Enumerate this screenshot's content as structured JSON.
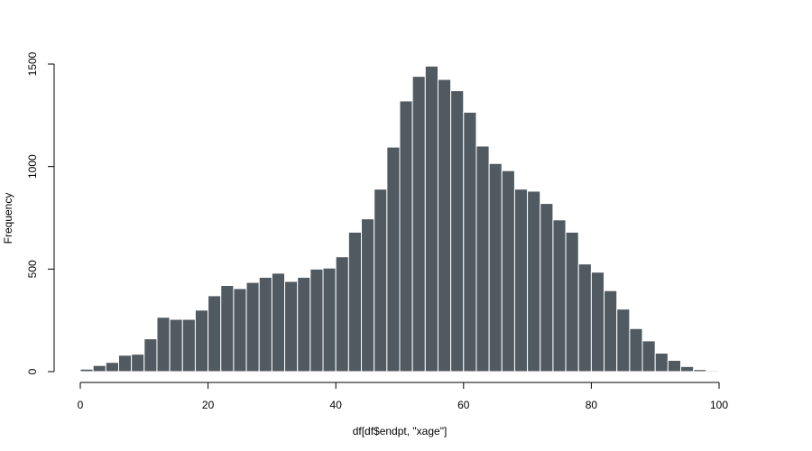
{
  "chart_data": {
    "type": "bar",
    "subtype": "histogram",
    "title": "",
    "xlabel": "df[df$endpt, \"xage\"]",
    "ylabel": "Frequency",
    "xlim": [
      0,
      100
    ],
    "ylim": [
      0,
      1500
    ],
    "bin_width": 2,
    "bin_start": 0,
    "x_ticks": [
      0,
      20,
      40,
      60,
      80,
      100
    ],
    "y_ticks": [
      0,
      500,
      1000,
      1500
    ],
    "values": [
      12,
      30,
      45,
      80,
      85,
      160,
      265,
      255,
      255,
      300,
      370,
      420,
      405,
      435,
      460,
      480,
      440,
      460,
      500,
      505,
      560,
      680,
      745,
      890,
      1095,
      1320,
      1440,
      1490,
      1425,
      1370,
      1265,
      1100,
      1015,
      980,
      890,
      880,
      820,
      740,
      680,
      525,
      485,
      395,
      305,
      210,
      150,
      90,
      55,
      25,
      10,
      5
    ],
    "bar_color": "#515a61",
    "grid": false,
    "legend": "none"
  }
}
